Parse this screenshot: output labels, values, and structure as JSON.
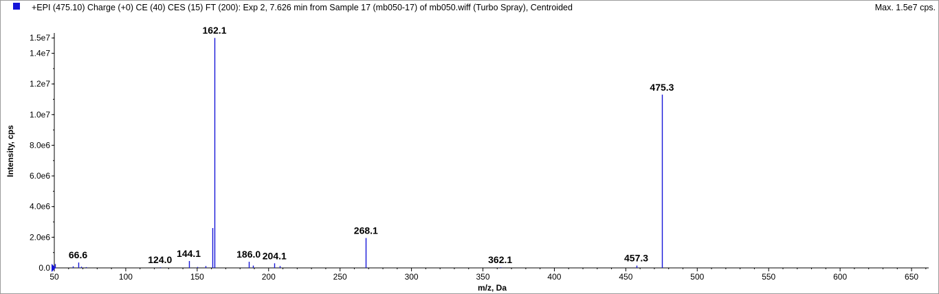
{
  "header": {
    "title": "+EPI (475.10) Charge (+0) CE (40) CES (15) FT (200): Exp 2, 7.626 min from Sample 17 (mb050-17) of mb050.wiff (Turbo Spray), Centroided",
    "max_label": "Max. 1.5e7 cps.",
    "series_color": "#1515d8"
  },
  "chart_data": {
    "type": "bar",
    "xlabel": "m/z, Da",
    "ylabel": "Intensity, cps",
    "xlim": [
      50,
      662
    ],
    "ylim": [
      0,
      15100000
    ],
    "x_ticks": [
      {
        "v": 50,
        "t": "50"
      },
      {
        "v": 100,
        "t": "100"
      },
      {
        "v": 150,
        "t": "150"
      },
      {
        "v": 200,
        "t": "200"
      },
      {
        "v": 250,
        "t": "250"
      },
      {
        "v": 300,
        "t": "300"
      },
      {
        "v": 350,
        "t": "350"
      },
      {
        "v": 400,
        "t": "400"
      },
      {
        "v": 450,
        "t": "450"
      },
      {
        "v": 500,
        "t": "500"
      },
      {
        "v": 550,
        "t": "550"
      },
      {
        "v": 600,
        "t": "600"
      },
      {
        "v": 650,
        "t": "650"
      }
    ],
    "y_ticks": [
      {
        "v": 0,
        "t": "0.0"
      },
      {
        "v": 2000000,
        "t": "2.0e6"
      },
      {
        "v": 4000000,
        "t": "4.0e6"
      },
      {
        "v": 6000000,
        "t": "6.0e6"
      },
      {
        "v": 8000000,
        "t": "8.0e6"
      },
      {
        "v": 10000000,
        "t": "1.0e7"
      },
      {
        "v": 12000000,
        "t": "1.2e7"
      },
      {
        "v": 14000000,
        "t": "1.4e7"
      },
      {
        "v": 15000000,
        "t": "1.5e7"
      }
    ],
    "peaks": [
      {
        "mz": 50.5,
        "intensity": 250000
      },
      {
        "mz": 63.0,
        "intensity": 100000
      },
      {
        "mz": 66.6,
        "intensity": 350000,
        "label": "66.6"
      },
      {
        "mz": 69.0,
        "intensity": 80000
      },
      {
        "mz": 72.0,
        "intensity": 50000
      },
      {
        "mz": 124.0,
        "intensity": 40000,
        "label": "124.0"
      },
      {
        "mz": 144.1,
        "intensity": 450000,
        "label": "144.1"
      },
      {
        "mz": 150.0,
        "intensity": 60000
      },
      {
        "mz": 156.0,
        "intensity": 120000
      },
      {
        "mz": 160.5,
        "intensity": 2600000
      },
      {
        "mz": 162.1,
        "intensity": 15000000,
        "label": "162.1"
      },
      {
        "mz": 186.0,
        "intensity": 400000,
        "label": "186.0"
      },
      {
        "mz": 189.0,
        "intensity": 150000
      },
      {
        "mz": 204.1,
        "intensity": 300000,
        "label": "204.1"
      },
      {
        "mz": 208.0,
        "intensity": 120000
      },
      {
        "mz": 268.1,
        "intensity": 1950000,
        "label": "268.1"
      },
      {
        "mz": 362.1,
        "intensity": 40000,
        "label": "362.1"
      },
      {
        "mz": 457.3,
        "intensity": 150000,
        "label": "457.3"
      },
      {
        "mz": 475.3,
        "intensity": 11300000,
        "label": "475.3"
      }
    ]
  }
}
